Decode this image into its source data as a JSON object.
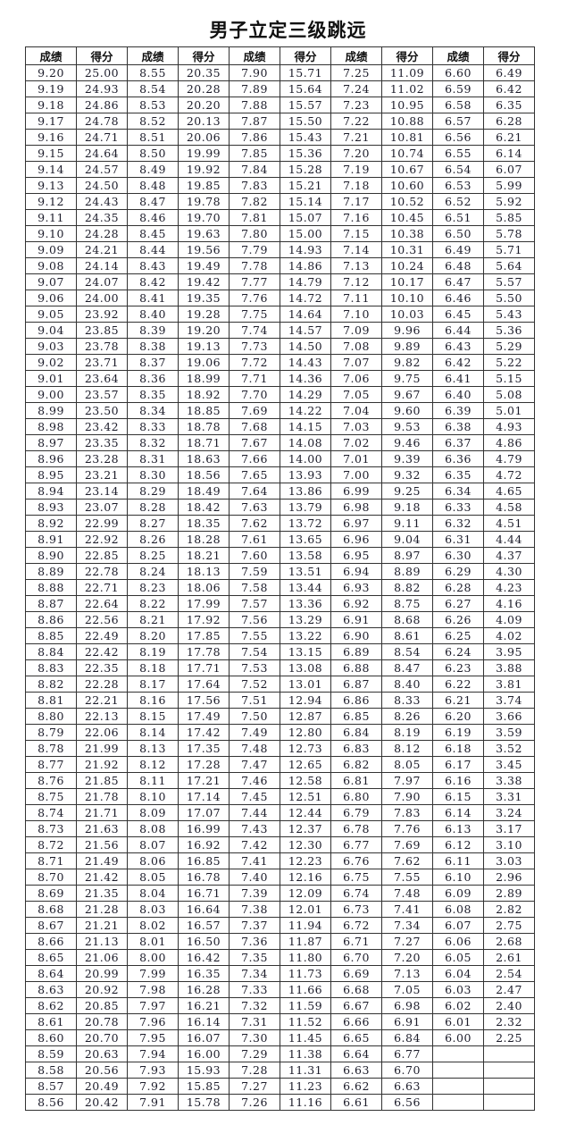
{
  "title": "男子立定三级跳远",
  "headers": [
    "成绩",
    "得分",
    "成绩",
    "得分",
    "成绩",
    "得分",
    "成绩",
    "得分",
    "成绩",
    "得分"
  ],
  "columns": [
    [
      "9.20",
      "9.19",
      "9.18",
      "9.17",
      "9.16",
      "9.15",
      "9.14",
      "9.13",
      "9.12",
      "9.11",
      "9.10",
      "9.09",
      "9.08",
      "9.07",
      "9.06",
      "9.05",
      "9.04",
      "9.03",
      "9.02",
      "9.01",
      "9.00",
      "8.99",
      "8.98",
      "8.97",
      "8.96",
      "8.95",
      "8.94",
      "8.93",
      "8.92",
      "8.91",
      "8.90",
      "8.89",
      "8.88",
      "8.87",
      "8.86",
      "8.85",
      "8.84",
      "8.83",
      "8.82",
      "8.81",
      "8.80",
      "8.79",
      "8.78",
      "8.77",
      "8.76",
      "8.75",
      "8.74",
      "8.73",
      "8.72",
      "8.71",
      "8.70",
      "8.69",
      "8.68",
      "8.67",
      "8.66",
      "8.65",
      "8.64",
      "8.63",
      "8.62",
      "8.61",
      "8.60",
      "8.59",
      "8.58",
      "8.57",
      "8.56"
    ],
    [
      "25.00",
      "24.93",
      "24.86",
      "24.78",
      "24.71",
      "24.64",
      "24.57",
      "24.50",
      "24.43",
      "24.35",
      "24.28",
      "24.21",
      "24.14",
      "24.07",
      "24.00",
      "23.92",
      "23.85",
      "23.78",
      "23.71",
      "23.64",
      "23.57",
      "23.50",
      "23.42",
      "23.35",
      "23.28",
      "23.21",
      "23.14",
      "23.07",
      "22.99",
      "22.92",
      "22.85",
      "22.78",
      "22.71",
      "22.64",
      "22.56",
      "22.49",
      "22.42",
      "22.35",
      "22.28",
      "22.21",
      "22.13",
      "22.06",
      "21.99",
      "21.92",
      "21.85",
      "21.78",
      "21.71",
      "21.63",
      "21.56",
      "21.49",
      "21.42",
      "21.35",
      "21.28",
      "21.21",
      "21.13",
      "21.06",
      "20.99",
      "20.92",
      "20.85",
      "20.78",
      "20.70",
      "20.63",
      "20.56",
      "20.49",
      "20.42"
    ],
    [
      "8.55",
      "8.54",
      "8.53",
      "8.52",
      "8.51",
      "8.50",
      "8.49",
      "8.48",
      "8.47",
      "8.46",
      "8.45",
      "8.44",
      "8.43",
      "8.42",
      "8.41",
      "8.40",
      "8.39",
      "8.38",
      "8.37",
      "8.36",
      "8.35",
      "8.34",
      "8.33",
      "8.32",
      "8.31",
      "8.30",
      "8.29",
      "8.28",
      "8.27",
      "8.26",
      "8.25",
      "8.24",
      "8.23",
      "8.22",
      "8.21",
      "8.20",
      "8.19",
      "8.18",
      "8.17",
      "8.16",
      "8.15",
      "8.14",
      "8.13",
      "8.12",
      "8.11",
      "8.10",
      "8.09",
      "8.08",
      "8.07",
      "8.06",
      "8.05",
      "8.04",
      "8.03",
      "8.02",
      "8.01",
      "8.00",
      "7.99",
      "7.98",
      "7.97",
      "7.96",
      "7.95",
      "7.94",
      "7.93",
      "7.92",
      "7.91"
    ],
    [
      "20.35",
      "20.28",
      "20.20",
      "20.13",
      "20.06",
      "19.99",
      "19.92",
      "19.85",
      "19.78",
      "19.70",
      "19.63",
      "19.56",
      "19.49",
      "19.42",
      "19.35",
      "19.28",
      "19.20",
      "19.13",
      "19.06",
      "18.99",
      "18.92",
      "18.85",
      "18.78",
      "18.71",
      "18.63",
      "18.56",
      "18.49",
      "18.42",
      "18.35",
      "18.28",
      "18.21",
      "18.13",
      "18.06",
      "17.99",
      "17.92",
      "17.85",
      "17.78",
      "17.71",
      "17.64",
      "17.56",
      "17.49",
      "17.42",
      "17.35",
      "17.28",
      "17.21",
      "17.14",
      "17.07",
      "16.99",
      "16.92",
      "16.85",
      "16.78",
      "16.71",
      "16.64",
      "16.57",
      "16.50",
      "16.42",
      "16.35",
      "16.28",
      "16.21",
      "16.14",
      "16.07",
      "16.00",
      "15.93",
      "15.85",
      "15.78"
    ],
    [
      "7.90",
      "7.89",
      "7.88",
      "7.87",
      "7.86",
      "7.85",
      "7.84",
      "7.83",
      "7.82",
      "7.81",
      "7.80",
      "7.79",
      "7.78",
      "7.77",
      "7.76",
      "7.75",
      "7.74",
      "7.73",
      "7.72",
      "7.71",
      "7.70",
      "7.69",
      "7.68",
      "7.67",
      "7.66",
      "7.65",
      "7.64",
      "7.63",
      "7.62",
      "7.61",
      "7.60",
      "7.59",
      "7.58",
      "7.57",
      "7.56",
      "7.55",
      "7.54",
      "7.53",
      "7.52",
      "7.51",
      "7.50",
      "7.49",
      "7.48",
      "7.47",
      "7.46",
      "7.45",
      "7.44",
      "7.43",
      "7.42",
      "7.41",
      "7.40",
      "7.39",
      "7.38",
      "7.37",
      "7.36",
      "7.35",
      "7.34",
      "7.33",
      "7.32",
      "7.31",
      "7.30",
      "7.29",
      "7.28",
      "7.27",
      "7.26"
    ],
    [
      "15.71",
      "15.64",
      "15.57",
      "15.50",
      "15.43",
      "15.36",
      "15.28",
      "15.21",
      "15.14",
      "15.07",
      "15.00",
      "14.93",
      "14.86",
      "14.79",
      "14.72",
      "14.64",
      "14.57",
      "14.50",
      "14.43",
      "14.36",
      "14.29",
      "14.22",
      "14.15",
      "14.08",
      "14.00",
      "13.93",
      "13.86",
      "13.79",
      "13.72",
      "13.65",
      "13.58",
      "13.51",
      "13.44",
      "13.36",
      "13.29",
      "13.22",
      "13.15",
      "13.08",
      "13.01",
      "12.94",
      "12.87",
      "12.80",
      "12.73",
      "12.65",
      "12.58",
      "12.51",
      "12.44",
      "12.37",
      "12.30",
      "12.23",
      "12.16",
      "12.09",
      "12.01",
      "11.94",
      "11.87",
      "11.80",
      "11.73",
      "11.66",
      "11.59",
      "11.52",
      "11.45",
      "11.38",
      "11.31",
      "11.23",
      "11.16"
    ],
    [
      "7.25",
      "7.24",
      "7.23",
      "7.22",
      "7.21",
      "7.20",
      "7.19",
      "7.18",
      "7.17",
      "7.16",
      "7.15",
      "7.14",
      "7.13",
      "7.12",
      "7.11",
      "7.10",
      "7.09",
      "7.08",
      "7.07",
      "7.06",
      "7.05",
      "7.04",
      "7.03",
      "7.02",
      "7.01",
      "7.00",
      "6.99",
      "6.98",
      "6.97",
      "6.96",
      "6.95",
      "6.94",
      "6.93",
      "6.92",
      "6.91",
      "6.90",
      "6.89",
      "6.88",
      "6.87",
      "6.86",
      "6.85",
      "6.84",
      "6.83",
      "6.82",
      "6.81",
      "6.80",
      "6.79",
      "6.78",
      "6.77",
      "6.76",
      "6.75",
      "6.74",
      "6.73",
      "6.72",
      "6.71",
      "6.70",
      "6.69",
      "6.68",
      "6.67",
      "6.66",
      "6.65",
      "6.64",
      "6.63",
      "6.62",
      "6.61"
    ],
    [
      "11.09",
      "11.02",
      "10.95",
      "10.88",
      "10.81",
      "10.74",
      "10.67",
      "10.60",
      "10.52",
      "10.45",
      "10.38",
      "10.31",
      "10.24",
      "10.17",
      "10.10",
      "10.03",
      "9.96",
      "9.89",
      "9.82",
      "9.75",
      "9.67",
      "9.60",
      "9.53",
      "9.46",
      "9.39",
      "9.32",
      "9.25",
      "9.18",
      "9.11",
      "9.04",
      "8.97",
      "8.89",
      "8.82",
      "8.75",
      "8.68",
      "8.61",
      "8.54",
      "8.47",
      "8.40",
      "8.33",
      "8.26",
      "8.19",
      "8.12",
      "8.05",
      "7.97",
      "7.90",
      "7.83",
      "7.76",
      "7.69",
      "7.62",
      "7.55",
      "7.48",
      "7.41",
      "7.34",
      "7.27",
      "7.20",
      "7.13",
      "7.05",
      "6.98",
      "6.91",
      "6.84",
      "6.77",
      "6.70",
      "6.63",
      "6.56"
    ],
    [
      "6.60",
      "6.59",
      "6.58",
      "6.57",
      "6.56",
      "6.55",
      "6.54",
      "6.53",
      "6.52",
      "6.51",
      "6.50",
      "6.49",
      "6.48",
      "6.47",
      "6.46",
      "6.45",
      "6.44",
      "6.43",
      "6.42",
      "6.41",
      "6.40",
      "6.39",
      "6.38",
      "6.37",
      "6.36",
      "6.35",
      "6.34",
      "6.33",
      "6.32",
      "6.31",
      "6.30",
      "6.29",
      "6.28",
      "6.27",
      "6.26",
      "6.25",
      "6.24",
      "6.23",
      "6.22",
      "6.21",
      "6.20",
      "6.19",
      "6.18",
      "6.17",
      "6.16",
      "6.15",
      "6.14",
      "6.13",
      "6.12",
      "6.11",
      "6.10",
      "6.09",
      "6.08",
      "6.07",
      "6.06",
      "6.05",
      "6.04",
      "6.03",
      "6.02",
      "6.01",
      "6.00"
    ],
    [
      "6.49",
      "6.42",
      "6.35",
      "6.28",
      "6.21",
      "6.14",
      "6.07",
      "5.99",
      "5.92",
      "5.85",
      "5.78",
      "5.71",
      "5.64",
      "5.57",
      "5.50",
      "5.43",
      "5.36",
      "5.29",
      "5.22",
      "5.15",
      "5.08",
      "5.01",
      "4.93",
      "4.86",
      "4.79",
      "4.72",
      "4.65",
      "4.58",
      "4.51",
      "4.44",
      "4.37",
      "4.30",
      "4.23",
      "4.16",
      "4.09",
      "4.02",
      "3.95",
      "3.88",
      "3.81",
      "3.74",
      "3.66",
      "3.59",
      "3.52",
      "3.45",
      "3.38",
      "3.31",
      "3.24",
      "3.17",
      "3.10",
      "3.03",
      "2.96",
      "2.89",
      "2.82",
      "2.75",
      "2.68",
      "2.61",
      "2.54",
      "2.47",
      "2.40",
      "2.32",
      "2.25"
    ]
  ]
}
